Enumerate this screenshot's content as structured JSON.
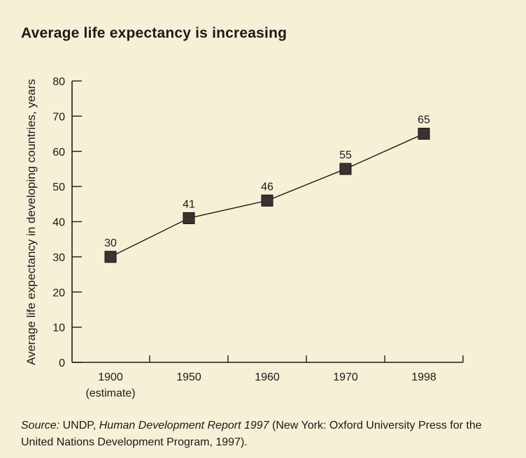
{
  "title": "Average life expectancy is increasing",
  "source": {
    "label": "Source:",
    "org": " UNDP, ",
    "report": "Human Development Report 1997",
    "rest": " (New York: Oxford University Press for the United Nations Development Program, 1997)."
  },
  "chart_data": {
    "type": "line",
    "title": "Average life expectancy is increasing",
    "ylabel": "Average life expectancy in developing countries, years",
    "xlabel": "",
    "categories": [
      "1900",
      "1950",
      "1960",
      "1970",
      "1998"
    ],
    "category_sublabels": [
      "(estimate)",
      "",
      "",
      "",
      ""
    ],
    "values": [
      30,
      41,
      46,
      55,
      65
    ],
    "data_labels": [
      "30",
      "41",
      "46",
      "55",
      "65"
    ],
    "ylim": [
      0,
      80
    ],
    "yticks": [
      0,
      10,
      20,
      30,
      40,
      50,
      60,
      70,
      80
    ],
    "grid": false,
    "legend": "none",
    "marker": "square",
    "marker_color": "#3a3330",
    "line_color": "#1a1a1a"
  }
}
